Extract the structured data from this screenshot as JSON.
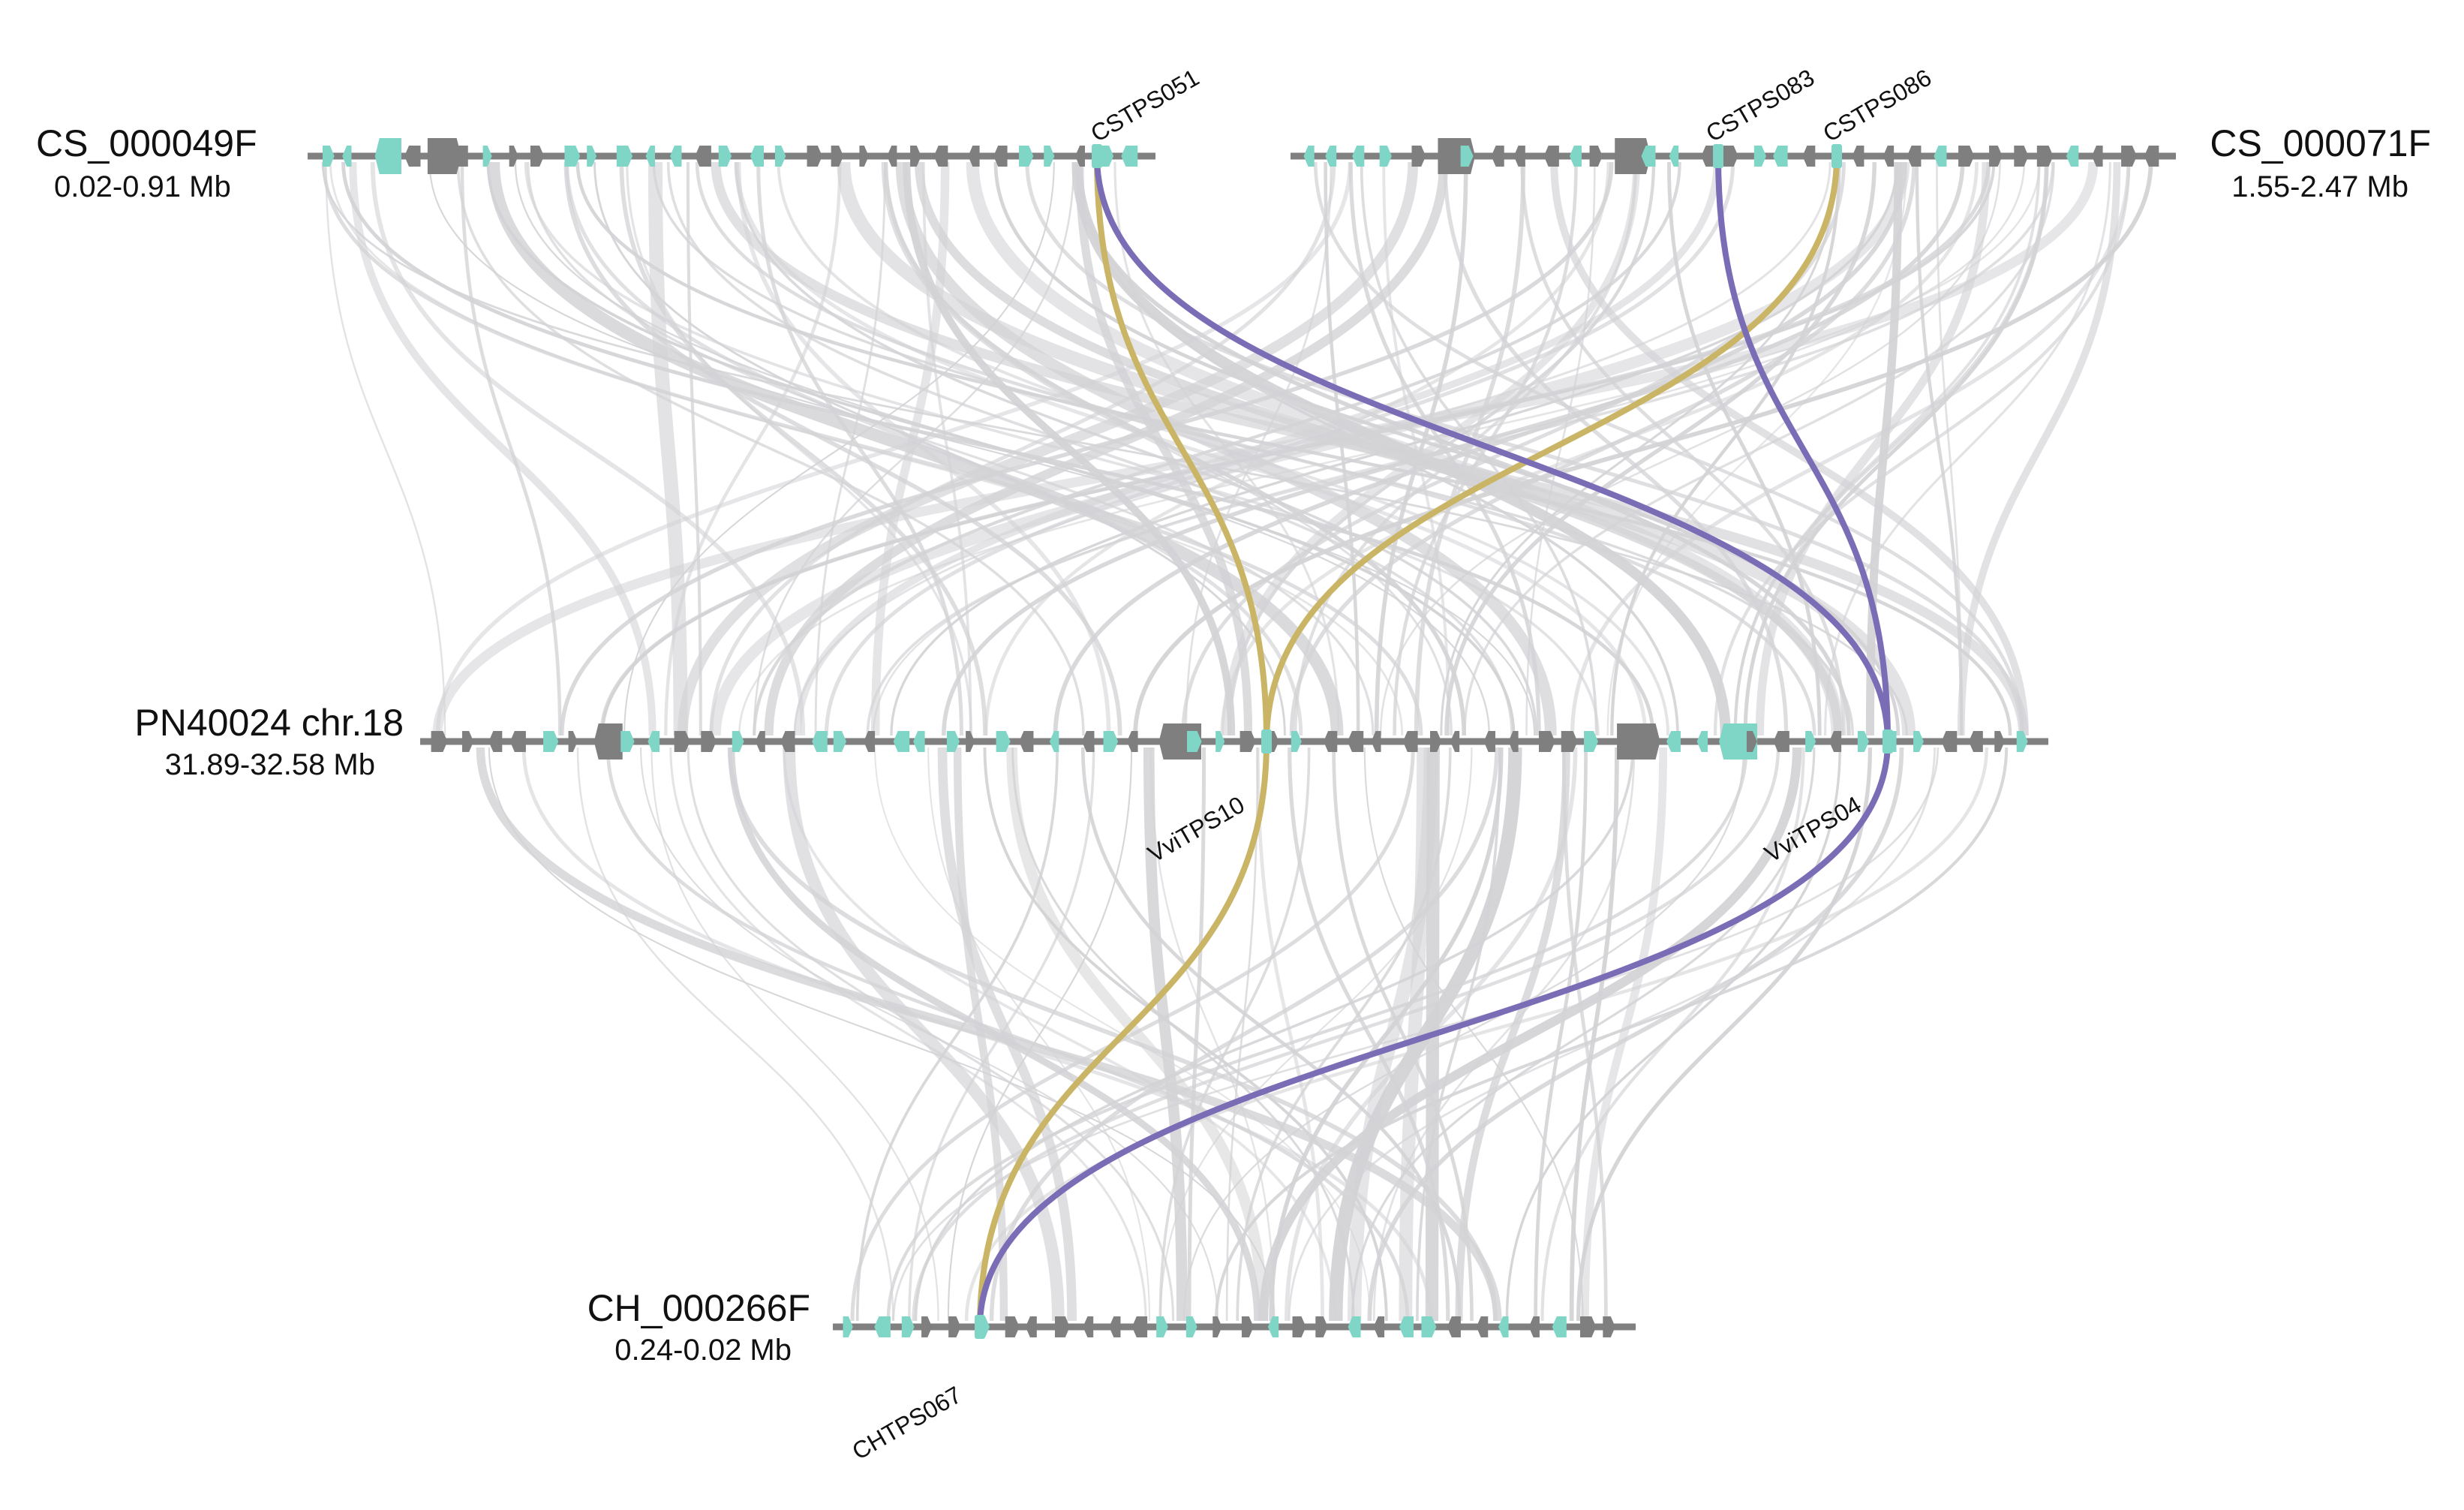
{
  "colors": {
    "background": "#ffffff",
    "backbone": "#808080",
    "gene_gray": "#7f7f7f",
    "gene_teal": "#7fd6c7",
    "synteny_gray": "#d3d3d6",
    "highlight_gold": "#c9b565",
    "highlight_purple": "#7b6cb6"
  },
  "segments": [
    {
      "id": "cs49",
      "name": "CS_000049F",
      "range": "0.02-0.91 Mb"
    },
    {
      "id": "cs71",
      "name": "CS_000071F",
      "range": "1.55-2.47 Mb"
    },
    {
      "id": "pn",
      "name": "PN40024 chr.18",
      "range": "31.89-32.58 Mb"
    },
    {
      "id": "ch",
      "name": "CH_000266F",
      "range": "0.24-0.02 Mb"
    }
  ],
  "highlight_genes": [
    {
      "id": "cstps051",
      "label": "CSTPS051"
    },
    {
      "id": "cstps083",
      "label": "CSTPS083"
    },
    {
      "id": "cstps086",
      "label": "CSTPS086"
    },
    {
      "id": "vvitps10",
      "label": "VviTPS10"
    },
    {
      "id": "vvitps04",
      "label": "VviTPS04"
    },
    {
      "id": "chtps067",
      "label": "CHTPS067"
    }
  ],
  "highlight_links": [
    {
      "from": "cstps051",
      "to": "vvitps10",
      "color": "gold"
    },
    {
      "from": "vvitps10",
      "to": "chtps067",
      "color": "gold"
    },
    {
      "from": "cstps086",
      "to": "vvitps10",
      "color": "gold"
    },
    {
      "from": "cstps051",
      "to": "vvitps04",
      "color": "purple"
    },
    {
      "from": "cstps083",
      "to": "vvitps04",
      "color": "purple"
    },
    {
      "from": "vvitps04",
      "to": "chtps067",
      "color": "purple"
    }
  ]
}
